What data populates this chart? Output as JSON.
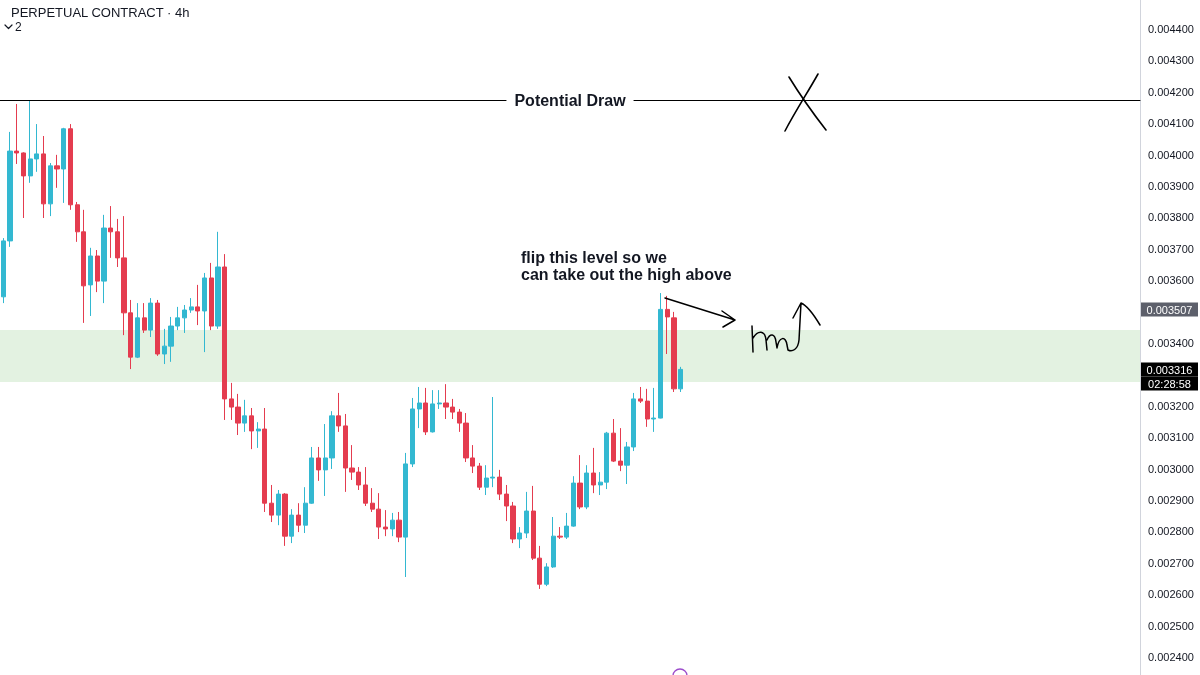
{
  "chart_data": {
    "type": "candlestick",
    "title": "PERPETUAL CONTRACT · 4h",
    "categories": [
      null,
      null,
      null,
      null,
      null,
      null,
      null,
      null,
      null,
      null,
      null,
      null,
      null,
      null,
      null,
      null,
      null,
      null,
      null,
      null,
      null,
      null,
      null,
      null,
      null,
      null,
      null,
      null,
      null,
      null,
      null,
      null,
      null,
      null,
      null,
      null,
      null,
      null,
      null,
      null,
      null,
      null,
      null,
      null,
      null,
      null,
      null,
      null,
      null,
      null,
      null,
      null,
      null,
      null,
      null,
      null,
      null,
      null,
      null,
      null,
      null,
      null,
      null,
      null,
      null,
      null,
      null,
      null,
      null,
      null,
      null,
      null,
      null,
      null,
      null,
      null,
      null,
      null,
      null,
      null,
      null,
      null,
      null,
      null,
      null,
      null,
      null,
      null,
      null,
      null,
      null,
      null,
      null,
      null,
      null,
      null,
      null,
      null,
      null,
      null,
      null,
      null,
      null,
      null,
      null,
      null,
      null,
      null,
      null,
      null,
      null,
      null,
      null,
      null,
      null,
      null,
      null,
      null,
      null,
      null,
      null,
      null,
      null,
      null,
      null,
      null,
      null,
      null,
      null,
      null,
      null,
      null,
      null,
      null,
      null,
      null,
      null,
      null,
      null,
      null,
      null,
      null,
      null,
      null,
      null,
      null,
      null,
      null,
      null,
      null,
      null,
      null,
      null,
      null,
      null,
      null,
      null,
      null,
      null,
      null,
      null,
      null,
      null,
      null,
      null,
      null,
      null,
      null,
      null,
      null
    ],
    "ohlc": [
      [
        0.003547,
        0.003734,
        0.003527,
        0.003725
      ],
      [
        0.003725,
        0.004072,
        0.003706,
        0.004011
      ],
      [
        0.004011,
        0.004161,
        0.00397,
        0.004005
      ],
      [
        0.004005,
        0.004007,
        0.003798,
        0.003932
      ],
      [
        0.003932,
        0.004172,
        0.00391,
        0.003986
      ],
      [
        0.003986,
        0.004097,
        0.003945,
        0.004002
      ],
      [
        0.004002,
        0.004059,
        0.003798,
        0.003843
      ],
      [
        0.003843,
        0.003973,
        0.003804,
        0.003964
      ],
      [
        0.003964,
        0.003999,
        0.003894,
        0.003954
      ],
      [
        0.003954,
        0.004085,
        0.003846,
        0.004082
      ],
      [
        0.004082,
        0.004097,
        0.003824,
        0.00384
      ],
      [
        0.00384,
        0.003849,
        0.003722,
        0.003754
      ],
      [
        0.003754,
        0.003824,
        0.003464,
        0.003582
      ],
      [
        0.003585,
        0.003703,
        0.003486,
        0.003677
      ],
      [
        0.003677,
        0.003696,
        0.003562,
        0.003597
      ],
      [
        0.003597,
        0.003808,
        0.003527,
        0.003766
      ],
      [
        0.003766,
        0.003836,
        0.003671,
        0.003754
      ],
      [
        0.003754,
        0.003795,
        0.003642,
        0.003671
      ],
      [
        0.003671,
        0.003804,
        0.003425,
        0.003496
      ],
      [
        0.003496,
        0.003537,
        0.003317,
        0.003355
      ],
      [
        0.003355,
        0.003527,
        0.003352,
        0.00348
      ],
      [
        0.00348,
        0.003527,
        0.003432,
        0.003441
      ],
      [
        0.003441,
        0.003543,
        0.003419,
        0.003527
      ],
      [
        0.003527,
        0.003537,
        0.003359,
        0.003365
      ],
      [
        0.003365,
        0.003445,
        0.003333,
        0.00339
      ],
      [
        0.00339,
        0.003483,
        0.00334,
        0.003454
      ],
      [
        0.003454,
        0.003515,
        0.003441,
        0.00348
      ],
      [
        0.00348,
        0.003521,
        0.003432,
        0.003505
      ],
      [
        0.003505,
        0.003543,
        0.003496,
        0.003515
      ],
      [
        0.003515,
        0.003585,
        0.003457,
        0.003502
      ],
      [
        0.003502,
        0.003623,
        0.003371,
        0.003607
      ],
      [
        0.003607,
        0.003655,
        0.003441,
        0.003454
      ],
      [
        0.003454,
        0.003754,
        0.003445,
        0.003642
      ],
      [
        0.003642,
        0.003683,
        0.003155,
        0.003222
      ],
      [
        0.003222,
        0.003273,
        0.003155,
        0.003196
      ],
      [
        0.003196,
        0.003238,
        0.003107,
        0.003145
      ],
      [
        0.003145,
        0.003219,
        0.003117,
        0.003168
      ],
      [
        0.003168,
        0.003193,
        0.003062,
        0.00312
      ],
      [
        0.00312,
        0.003148,
        0.003066,
        0.003126
      ],
      [
        0.003126,
        0.003193,
        0.002862,
        0.00289
      ],
      [
        0.00289,
        0.002948,
        0.00283,
        0.002852
      ],
      [
        0.002852,
        0.002932,
        0.00282,
        0.002919
      ],
      [
        0.002919,
        0.002922,
        0.002754,
        0.002785
      ],
      [
        0.002785,
        0.002871,
        0.002763,
        0.002852
      ],
      [
        0.002852,
        0.00289,
        0.002798,
        0.00282
      ],
      [
        0.00282,
        0.002941,
        0.002795,
        0.00289
      ],
      [
        0.00289,
        0.003069,
        0.002888,
        0.003034
      ],
      [
        0.003034,
        0.003069,
        0.002961,
        0.002996
      ],
      [
        0.002996,
        0.003142,
        0.002913,
        0.003034
      ],
      [
        0.003034,
        0.003183,
        0.002999,
        0.003168
      ],
      [
        0.003168,
        0.003241,
        0.003117,
        0.003136
      ],
      [
        0.003136,
        0.003174,
        0.002926,
        0.003002
      ],
      [
        0.003002,
        0.003075,
        0.002964,
        0.002989
      ],
      [
        0.002989,
        0.003005,
        0.002932,
        0.002948
      ],
      [
        0.002948,
        0.003005,
        0.002881,
        0.00289
      ],
      [
        0.00289,
        0.002938,
        0.002862,
        0.002871
      ],
      [
        0.002871,
        0.002922,
        0.002776,
        0.002814
      ],
      [
        0.002814,
        0.002868,
        0.002785,
        0.002808
      ],
      [
        0.002808,
        0.002859,
        0.002785,
        0.002836
      ],
      [
        0.002836,
        0.002862,
        0.002766,
        0.002782
      ],
      [
        0.002782,
        0.00305,
        0.002655,
        0.003015
      ],
      [
        0.003015,
        0.003225,
        0.003005,
        0.00319
      ],
      [
        0.00319,
        0.00326,
        0.003129,
        0.003209
      ],
      [
        0.003209,
        0.003257,
        0.003107,
        0.003117
      ],
      [
        0.003117,
        0.00325,
        0.003115,
        0.003206
      ],
      [
        0.003206,
        0.00325,
        0.00319,
        0.003209
      ],
      [
        0.003209,
        0.003269,
        0.003158,
        0.003196
      ],
      [
        0.003196,
        0.003222,
        0.003158,
        0.00318
      ],
      [
        0.00318,
        0.00319,
        0.003117,
        0.003145
      ],
      [
        0.003145,
        0.003177,
        0.003021,
        0.003034
      ],
      [
        0.003034,
        0.003075,
        0.002986,
        0.003008
      ],
      [
        0.003008,
        0.003018,
        0.002932,
        0.002941
      ],
      [
        0.002941,
        0.003011,
        0.002916,
        0.00297
      ],
      [
        0.00297,
        0.003228,
        0.002941,
        0.002973
      ],
      [
        0.002973,
        0.002996,
        0.0029,
        0.002919
      ],
      [
        0.002919,
        0.002948,
        0.002833,
        0.002881
      ],
      [
        0.002881,
        0.002894,
        0.002763,
        0.002776
      ],
      [
        0.002776,
        0.002814,
        0.002747,
        0.002795
      ],
      [
        0.002795,
        0.002926,
        0.002779,
        0.002865
      ],
      [
        0.002865,
        0.002945,
        0.002709,
        0.002715
      ],
      [
        0.002715,
        0.002754,
        0.002617,
        0.002632
      ],
      [
        0.002632,
        0.002699,
        0.002626,
        0.002687
      ],
      [
        0.002687,
        0.002846,
        0.002684,
        0.002785
      ],
      [
        0.002785,
        0.002814,
        0.002776,
        0.002782
      ],
      [
        0.002782,
        0.002859,
        0.002776,
        0.002817
      ],
      [
        0.002817,
        0.002976,
        0.002815,
        0.002954
      ],
      [
        0.002954,
        0.003043,
        0.002871,
        0.002878
      ],
      [
        0.002878,
        0.003011,
        0.002871,
        0.002986
      ],
      [
        0.002986,
        0.003066,
        0.002922,
        0.002948
      ],
      [
        0.002948,
        0.002989,
        0.002916,
        0.002957
      ],
      [
        0.002957,
        0.003117,
        0.002935,
        0.003113
      ],
      [
        0.003113,
        0.003158,
        0.003021,
        0.003024
      ],
      [
        0.003024,
        0.003129,
        0.002992,
        0.003011
      ],
      [
        0.003011,
        0.003085,
        0.002951,
        0.003069
      ],
      [
        0.003069,
        0.003241,
        0.003056,
        0.003222
      ],
      [
        0.003222,
        0.00326,
        0.003209,
        0.003215
      ],
      [
        0.003215,
        0.003254,
        0.003133,
        0.003158
      ],
      [
        0.003158,
        0.003257,
        0.003117,
        0.003161
      ],
      [
        0.003161,
        0.003559,
        0.00316,
        0.003507
      ],
      [
        0.003507,
        0.00355,
        0.003365,
        0.003483
      ],
      [
        0.00348,
        0.003499,
        0.003244,
        0.003254
      ],
      [
        0.003254,
        0.003324,
        0.003244,
        0.003316
      ],
      null,
      null,
      null,
      null,
      null,
      null,
      null,
      null,
      null,
      null,
      null,
      null,
      null,
      null,
      null,
      null,
      null,
      null,
      null,
      null,
      null,
      null,
      null,
      null,
      null,
      null,
      null,
      null,
      null,
      null,
      null,
      null,
      null,
      null,
      null,
      null,
      null,
      null,
      null,
      null,
      null,
      null,
      null,
      null,
      null,
      null,
      null,
      null,
      null,
      null,
      null,
      null,
      null,
      null,
      null,
      null,
      null,
      null,
      null,
      null,
      null,
      null,
      null,
      null,
      null,
      null,
      null,
      null
    ],
    "colors": [
      "#33b8d1",
      "#33b8d1",
      "#e43c4f",
      "#e43c4f",
      "#33b8d1",
      "#33b8d1",
      "#e43c4f",
      "#33b8d1",
      "#e43c4f",
      "#33b8d1",
      "#e43c4f",
      "#e43c4f",
      "#e43c4f",
      "#33b8d1",
      "#e43c4f",
      "#33b8d1",
      "#e43c4f",
      "#e43c4f",
      "#e43c4f",
      "#e43c4f",
      "#33b8d1",
      "#e43c4f",
      "#33b8d1",
      "#e43c4f",
      "#33b8d1",
      "#33b8d1",
      "#33b8d1",
      "#33b8d1",
      "#33b8d1",
      "#e43c4f",
      "#33b8d1",
      "#e43c4f",
      "#33b8d1",
      "#e43c4f",
      "#e43c4f",
      "#e43c4f",
      "#33b8d1",
      "#e43c4f",
      "#33b8d1",
      "#e43c4f",
      "#e43c4f",
      "#33b8d1",
      "#e43c4f",
      "#33b8d1",
      "#e43c4f",
      "#33b8d1",
      "#33b8d1",
      "#e43c4f",
      "#33b8d1",
      "#33b8d1",
      "#e43c4f",
      "#e43c4f",
      "#e43c4f",
      "#e43c4f",
      "#e43c4f",
      "#e43c4f",
      "#e43c4f",
      "#e43c4f",
      "#33b8d1",
      "#e43c4f",
      "#33b8d1",
      "#33b8d1",
      "#33b8d1",
      "#e43c4f",
      "#33b8d1",
      "#33b8d1",
      "#e43c4f",
      "#e43c4f",
      "#e43c4f",
      "#e43c4f",
      "#e43c4f",
      "#e43c4f",
      "#33b8d1",
      "#33b8d1",
      "#e43c4f",
      "#e43c4f",
      "#e43c4f",
      "#33b8d1",
      "#33b8d1",
      "#e43c4f",
      "#e43c4f",
      "#33b8d1",
      "#33b8d1",
      "#e43c4f",
      "#33b8d1",
      "#33b8d1",
      "#e43c4f",
      "#33b8d1",
      "#e43c4f",
      "#33b8d1",
      "#33b8d1",
      "#e43c4f",
      "#e43c4f",
      "#33b8d1",
      "#33b8d1",
      "#e43c4f",
      "#e43c4f",
      "#33b8d1",
      "#33b8d1",
      "#e43c4f",
      "#e43c4f",
      "#33b8d1",
      null,
      null,
      null,
      null,
      null,
      null,
      null,
      null,
      null,
      null,
      null,
      null,
      null,
      null,
      null,
      null,
      null,
      null,
      null,
      null,
      null,
      null,
      null,
      null,
      null,
      null,
      null,
      null,
      null,
      null,
      null,
      null,
      null,
      null,
      null,
      null,
      null,
      null,
      null,
      null,
      null,
      null,
      null,
      null,
      null,
      null,
      null,
      null,
      null,
      null,
      null,
      null,
      null,
      null,
      null,
      null,
      null,
      null,
      null,
      null,
      null,
      null,
      null,
      null,
      null,
      null,
      null,
      null
    ],
    "ylim": [
      0.002343,
      0.004492
    ],
    "yticks": [
      {
        "value": 0.0024,
        "label": "0.002400"
      },
      {
        "value": 0.0025,
        "label": "0.002500"
      },
      {
        "value": 0.0026,
        "label": "0.002600"
      },
      {
        "value": 0.0027,
        "label": "0.002700"
      },
      {
        "value": 0.0028,
        "label": "0.002800"
      },
      {
        "value": 0.0029,
        "label": "0.002900"
      },
      {
        "value": 0.003,
        "label": "0.003000"
      },
      {
        "value": 0.0031,
        "label": "0.003100"
      },
      {
        "value": 0.0032,
        "label": "0.003200"
      },
      {
        "value": 0.0034,
        "label": "0.003400"
      },
      {
        "value": 0.0036,
        "label": "0.003600"
      },
      {
        "value": 0.0037,
        "label": "0.003700"
      },
      {
        "value": 0.0038,
        "label": "0.003800"
      },
      {
        "value": 0.0039,
        "label": "0.003900"
      },
      {
        "value": 0.004,
        "label": "0.004000"
      },
      {
        "value": 0.0041,
        "label": "0.004100"
      },
      {
        "value": 0.0042,
        "label": "0.004200"
      },
      {
        "value": 0.0043,
        "label": "0.004300"
      },
      {
        "value": 0.0044,
        "label": "0.004400"
      }
    ],
    "tick_labels": "y",
    "ref_lines": [
      {
        "axis": "y",
        "value": 0.004172,
        "label": "Potential Draw",
        "color": "#000000"
      }
    ],
    "bands": [
      {
        "axis": "y",
        "from": 0.003276,
        "to": 0.003441,
        "color": "#e3f2e1"
      }
    ],
    "annotations": [
      "flip this level so we\ncan take out the high above",
      "0.003507",
      "0.003316",
      "02:28:58",
      "2"
    ]
  }
}
